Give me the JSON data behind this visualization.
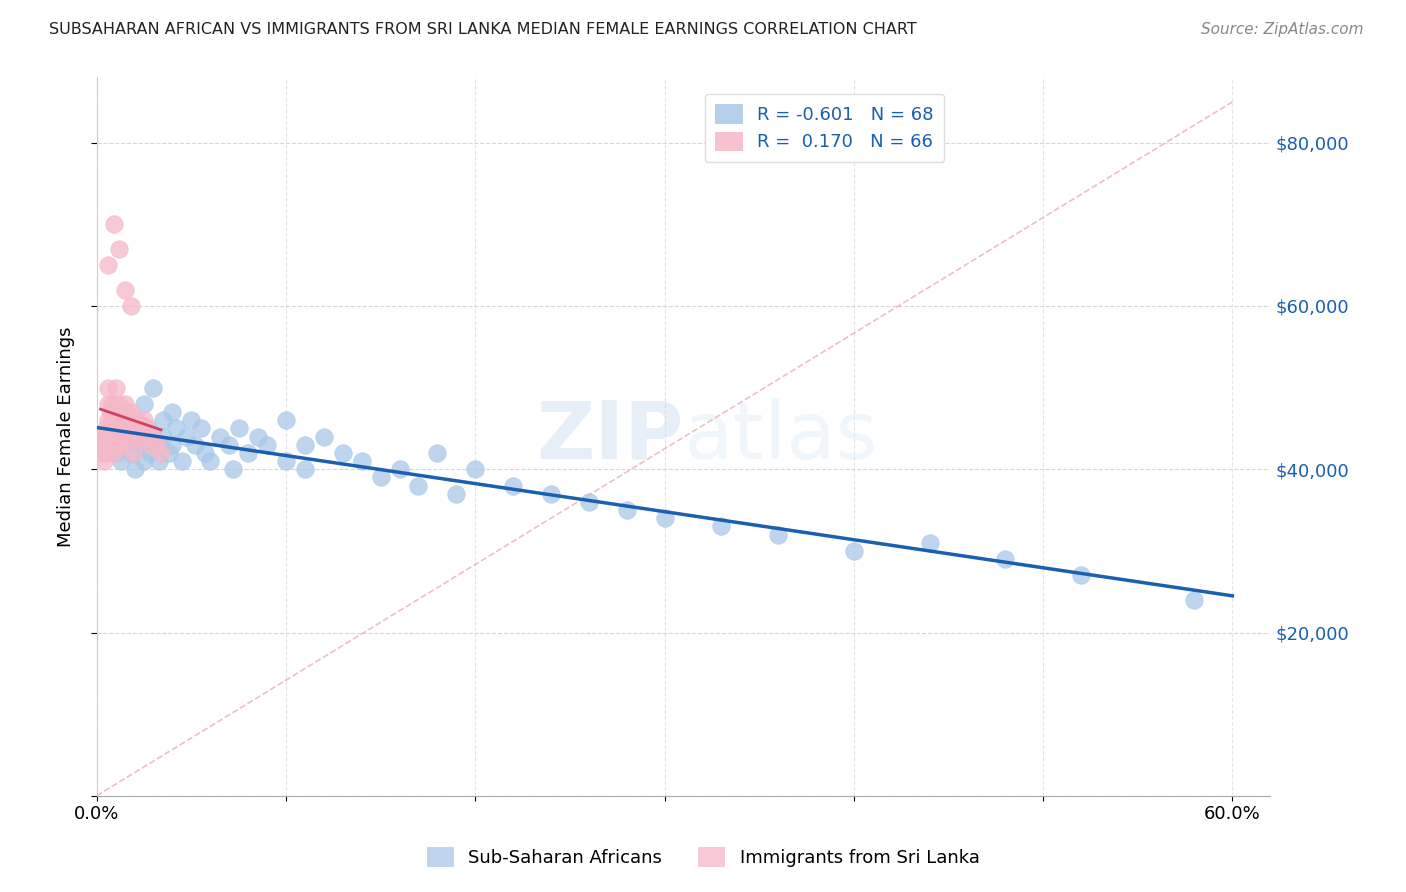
{
  "title": "SUBSAHARAN AFRICAN VS IMMIGRANTS FROM SRI LANKA MEDIAN FEMALE EARNINGS CORRELATION CHART",
  "source": "Source: ZipAtlas.com",
  "ylabel": "Median Female Earnings",
  "xlim": [
    0.0,
    0.62
  ],
  "ylim": [
    0,
    88000
  ],
  "blue_R": "-0.601",
  "blue_N": "68",
  "pink_R": "0.170",
  "pink_N": "66",
  "blue_color": "#a8c8e8",
  "pink_color": "#f5b8c8",
  "blue_line_color": "#1a5fb0",
  "pink_line_color": "#d04060",
  "ref_line_color": "#e0a0a8",
  "legend_label_blue": "Sub-Saharan Africans",
  "legend_label_pink": "Immigrants from Sri Lanka",
  "blue_scatter_x": [
    0.005,
    0.007,
    0.008,
    0.01,
    0.01,
    0.012,
    0.013,
    0.015,
    0.015,
    0.017,
    0.018,
    0.02,
    0.02,
    0.022,
    0.023,
    0.025,
    0.025,
    0.027,
    0.028,
    0.03,
    0.03,
    0.032,
    0.033,
    0.035,
    0.035,
    0.038,
    0.04,
    0.04,
    0.042,
    0.045,
    0.047,
    0.05,
    0.052,
    0.055,
    0.057,
    0.06,
    0.065,
    0.07,
    0.072,
    0.075,
    0.08,
    0.085,
    0.09,
    0.1,
    0.1,
    0.11,
    0.11,
    0.12,
    0.13,
    0.14,
    0.15,
    0.16,
    0.17,
    0.18,
    0.19,
    0.2,
    0.22,
    0.24,
    0.26,
    0.28,
    0.3,
    0.33,
    0.36,
    0.4,
    0.44,
    0.48,
    0.52,
    0.58
  ],
  "blue_scatter_y": [
    44000,
    43000,
    45000,
    42000,
    46000,
    44000,
    41000,
    47000,
    43000,
    45000,
    42000,
    46000,
    40000,
    44000,
    43000,
    48000,
    41000,
    45000,
    42000,
    50000,
    44000,
    43000,
    41000,
    46000,
    44000,
    42000,
    47000,
    43000,
    45000,
    41000,
    44000,
    46000,
    43000,
    45000,
    42000,
    41000,
    44000,
    43000,
    40000,
    45000,
    42000,
    44000,
    43000,
    46000,
    41000,
    43000,
    40000,
    44000,
    42000,
    41000,
    39000,
    40000,
    38000,
    42000,
    37000,
    40000,
    38000,
    37000,
    36000,
    35000,
    34000,
    33000,
    32000,
    30000,
    31000,
    29000,
    27000,
    24000
  ],
  "pink_scatter_x": [
    0.002,
    0.003,
    0.003,
    0.004,
    0.004,
    0.005,
    0.005,
    0.005,
    0.006,
    0.006,
    0.006,
    0.007,
    0.007,
    0.007,
    0.008,
    0.008,
    0.008,
    0.009,
    0.009,
    0.009,
    0.009,
    0.01,
    0.01,
    0.01,
    0.01,
    0.01,
    0.011,
    0.011,
    0.011,
    0.012,
    0.012,
    0.012,
    0.013,
    0.013,
    0.013,
    0.014,
    0.014,
    0.015,
    0.015,
    0.015,
    0.016,
    0.016,
    0.017,
    0.017,
    0.018,
    0.018,
    0.019,
    0.019,
    0.02,
    0.02,
    0.021,
    0.022,
    0.022,
    0.023,
    0.024,
    0.025,
    0.026,
    0.028,
    0.03,
    0.032,
    0.034,
    0.006,
    0.012,
    0.018,
    0.009,
    0.015
  ],
  "pink_scatter_y": [
    43000,
    42000,
    44000,
    43000,
    41000,
    45000,
    43000,
    42000,
    50000,
    48000,
    46000,
    47000,
    45000,
    44000,
    48000,
    46000,
    44000,
    47000,
    45000,
    43000,
    42000,
    50000,
    48000,
    46000,
    44000,
    43000,
    47000,
    45000,
    43000,
    48000,
    46000,
    44000,
    47000,
    45000,
    43000,
    46000,
    44000,
    48000,
    46000,
    44000,
    47000,
    45000,
    46000,
    44000,
    47000,
    45000,
    44000,
    42000,
    46000,
    44000,
    45000,
    46000,
    44000,
    45000,
    44000,
    46000,
    45000,
    43000,
    44000,
    43000,
    42000,
    65000,
    67000,
    60000,
    70000,
    62000
  ]
}
